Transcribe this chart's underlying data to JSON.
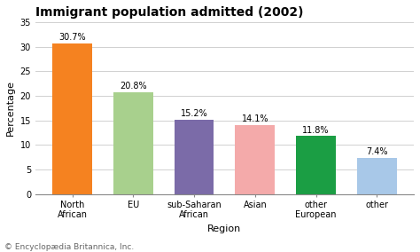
{
  "title": "Immigrant population admitted (2002)",
  "xlabel": "Region",
  "ylabel": "Percentage",
  "categories": [
    "North\nAfrican",
    "EU",
    "sub-Saharan\nAfrican",
    "Asian",
    "other\nEuropean",
    "other"
  ],
  "values": [
    30.7,
    20.8,
    15.2,
    14.1,
    11.8,
    7.4
  ],
  "labels": [
    "30.7%",
    "20.8%",
    "15.2%",
    "14.1%",
    "11.8%",
    "7.4%"
  ],
  "bar_colors": [
    "#F58220",
    "#A8D08D",
    "#7B6BA8",
    "#F4AAAA",
    "#1B9E44",
    "#A8C8E8"
  ],
  "ylim": [
    0,
    35
  ],
  "yticks": [
    0,
    5,
    10,
    15,
    20,
    25,
    30,
    35
  ],
  "background_color": "#FFFFFF",
  "grid_color": "#D0D0D0",
  "footnote": "© Encyclopædia Britannica, Inc.",
  "title_fontsize": 10,
  "axis_label_fontsize": 8,
  "tick_fontsize": 7,
  "bar_label_fontsize": 7,
  "footnote_fontsize": 6.5
}
